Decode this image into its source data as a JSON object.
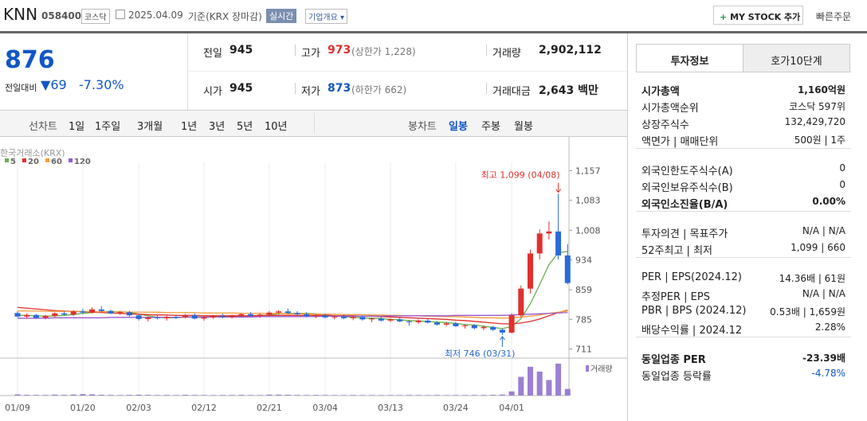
{
  "header": {
    "name": "KNN",
    "code": "058400",
    "market": "코스닥",
    "date": "2025.04.09",
    "basis": "기준(KRX 장마감)",
    "realtime": "실시간",
    "company_info": "기업개요",
    "my_stock": "MY STOCK 추가",
    "quick_order": "빠른주문"
  },
  "quote": {
    "price": "876",
    "change_label": "전일대비",
    "change": "69",
    "change_pct": "-7.30%"
  },
  "stats": {
    "rows": [
      [
        {
          "label": "전일",
          "value": "945"
        },
        {
          "label": "고가",
          "value": "973",
          "note": "(상한가 1,228)"
        },
        {
          "label": "거래량",
          "value": "2,902,112"
        }
      ],
      [
        {
          "label": "시가",
          "value": "945"
        },
        {
          "label": "저가",
          "value": "873",
          "note": "(하한가 662)"
        },
        {
          "label": "거래대금",
          "value": "2,643 백만"
        }
      ]
    ]
  },
  "tabs": {
    "line_chart": "선차트",
    "line_periods": [
      "1일",
      "1주일",
      "3개월",
      "1년",
      "3년",
      "5년",
      "10년"
    ],
    "candle_chart": "봉차트",
    "candle_periods": [
      "일봉",
      "주봉",
      "월봉"
    ]
  },
  "chart_data": {
    "type": "candlestick",
    "source": "한국거래소(KRX)",
    "categories": [
      "01/09",
      null,
      null,
      null,
      null,
      null,
      null,
      "01/20",
      null,
      null,
      null,
      null,
      null,
      "02/03",
      null,
      null,
      null,
      null,
      null,
      null,
      "02/12",
      null,
      null,
      null,
      null,
      null,
      null,
      "02/21",
      null,
      null,
      null,
      null,
      null,
      "03/04",
      null,
      null,
      null,
      null,
      null,
      null,
      "03/13",
      null,
      null,
      null,
      null,
      null,
      null,
      "03/24",
      null,
      null,
      null,
      null,
      null,
      "04/01",
      null,
      null,
      null,
      null,
      null,
      null
    ],
    "open": [
      801,
      792,
      796,
      789,
      794,
      800,
      797,
      805,
      802,
      810,
      806,
      800,
      803,
      795,
      786,
      790,
      788,
      791,
      790,
      795,
      787,
      790,
      793,
      791,
      795,
      798,
      794,
      797,
      802,
      805,
      801,
      798,
      793,
      795,
      790,
      792,
      788,
      791,
      785,
      787,
      782,
      785,
      780,
      778,
      782,
      777,
      772,
      775,
      768,
      770,
      763,
      766,
      759,
      752,
      795,
      862,
      950,
      1000,
      1005,
      945
    ],
    "high": [
      805,
      800,
      799,
      796,
      803,
      805,
      808,
      812,
      815,
      818,
      809,
      806,
      806,
      797,
      792,
      795,
      794,
      796,
      798,
      800,
      793,
      796,
      799,
      797,
      801,
      803,
      800,
      806,
      808,
      812,
      806,
      803,
      798,
      799,
      796,
      797,
      794,
      795,
      790,
      792,
      788,
      789,
      784,
      785,
      786,
      781,
      778,
      779,
      774,
      773,
      770,
      769,
      762,
      800,
      870,
      960,
      1010,
      1030,
      1099,
      973
    ],
    "low": [
      790,
      788,
      786,
      785,
      790,
      795,
      794,
      798,
      800,
      803,
      798,
      796,
      792,
      782,
      780,
      785,
      782,
      786,
      787,
      785,
      782,
      786,
      788,
      787,
      790,
      792,
      789,
      793,
      798,
      799,
      795,
      790,
      788,
      787,
      785,
      786,
      783,
      782,
      778,
      780,
      778,
      778,
      770,
      774,
      775,
      770,
      768,
      766,
      762,
      760,
      758,
      756,
      746,
      750,
      790,
      850,
      935,
      985,
      935,
      873
    ],
    "close": [
      792,
      796,
      789,
      794,
      800,
      797,
      805,
      802,
      810,
      806,
      800,
      803,
      795,
      786,
      790,
      788,
      791,
      789,
      795,
      787,
      790,
      793,
      791,
      795,
      798,
      794,
      797,
      802,
      805,
      801,
      798,
      793,
      795,
      790,
      792,
      788,
      791,
      785,
      787,
      782,
      785,
      780,
      778,
      782,
      777,
      772,
      775,
      768,
      770,
      763,
      766,
      759,
      752,
      795,
      862,
      950,
      1000,
      1005,
      945,
      876
    ],
    "up_color": "#e0302d",
    "down_color": "#2a6ad6",
    "ylim": [
      700,
      1170
    ],
    "yticks": [
      711,
      785,
      859,
      934,
      {
        "value": 1008,
        "label": "1,008"
      },
      {
        "value": 1083,
        "label": "1,083"
      },
      {
        "value": 1157,
        "label": "1,157"
      }
    ],
    "annotations": {
      "high": "최고 1,099 (04/08)",
      "low": "최저 746 (03/31)"
    },
    "series": [
      {
        "name": "5",
        "color": "#6ab04c",
        "values": [
          795,
          795,
          794,
          793,
          794,
          795,
          797,
          800,
          802,
          804,
          805,
          804,
          803,
          798,
          794,
          790,
          789,
          789,
          791,
          790,
          790,
          791,
          792,
          793,
          793,
          794,
          795,
          796,
          799,
          800,
          800,
          800,
          799,
          796,
          794,
          792,
          790,
          789,
          788,
          787,
          785,
          784,
          782,
          781,
          780,
          778,
          777,
          775,
          772,
          771,
          768,
          765,
          762,
          767,
          787,
          824,
          872,
          922,
          952,
          955
        ]
      },
      {
        "name": "20",
        "color": "#e0302d",
        "values": [
          815,
          813,
          811,
          809,
          807,
          806,
          805,
          804,
          803,
          802,
          801,
          800,
          799,
          798,
          797,
          796,
          796,
          795,
          795,
          795,
          794,
          794,
          794,
          794,
          794,
          794,
          794,
          795,
          795,
          795,
          795,
          795,
          795,
          795,
          794,
          794,
          794,
          793,
          793,
          792,
          791,
          790,
          789,
          788,
          787,
          786,
          785,
          783,
          782,
          780,
          778,
          776,
          774,
          774,
          776,
          780,
          786,
          794,
          802,
          808
        ]
      },
      {
        "name": "60",
        "color": "#f39c3a",
        "values": [
          806,
          806,
          806,
          805,
          805,
          805,
          805,
          805,
          804,
          804,
          804,
          804,
          803,
          803,
          803,
          803,
          802,
          802,
          802,
          802,
          801,
          801,
          801,
          801,
          800,
          800,
          800,
          800,
          800,
          799,
          799,
          799,
          798,
          798,
          798,
          797,
          797,
          797,
          796,
          796,
          795,
          795,
          794,
          794,
          793,
          793,
          792,
          792,
          791,
          790,
          789,
          789,
          788,
          789,
          791,
          793,
          796,
          800,
          803,
          806
        ]
      },
      {
        "name": "120",
        "color": "#9b59d0",
        "values": [
          788,
          788,
          788,
          788,
          789,
          789,
          789,
          789,
          789,
          789,
          790,
          790,
          790,
          790,
          790,
          790,
          790,
          790,
          791,
          791,
          791,
          791,
          791,
          791,
          791,
          791,
          792,
          792,
          792,
          792,
          792,
          792,
          792,
          793,
          793,
          793,
          793,
          793,
          793,
          793,
          794,
          794,
          794,
          794,
          794,
          794,
          794,
          795,
          795,
          795,
          795,
          795,
          795,
          796,
          797,
          798,
          799,
          800,
          801,
          802
        ]
      }
    ],
    "volume": {
      "name": "거래량",
      "color": "#9b7fd4",
      "ylim": [
        0,
        15000000
      ],
      "values": [
        520000,
        310000,
        280000,
        260000,
        410000,
        300000,
        450000,
        620000,
        540000,
        330000,
        280000,
        240000,
        300000,
        360000,
        290000,
        250000,
        270000,
        230000,
        310000,
        260000,
        240000,
        220000,
        250000,
        260000,
        300000,
        240000,
        230000,
        410000,
        380000,
        350000,
        270000,
        250000,
        260000,
        240000,
        230000,
        220000,
        250000,
        210000,
        230000,
        220000,
        240000,
        210000,
        260000,
        230000,
        220000,
        250000,
        210000,
        240000,
        230000,
        260000,
        250000,
        300000,
        420000,
        1800000,
        8200000,
        12600000,
        10500000,
        6800000,
        14000000,
        2902112
      ]
    }
  },
  "side": {
    "tabs": [
      "투자정보",
      "호가10단계"
    ],
    "sections": [
      [
        {
          "label": "시가총액",
          "value": "1,160억원"
        },
        {
          "label": "시가총액순위",
          "value": "코스닥 597위"
        },
        {
          "label": "상장주식수",
          "value": "132,429,720"
        },
        {
          "label": "액면가 | 매매단위",
          "value": "500원 | 1주"
        }
      ],
      [
        {
          "label": "외국인한도주식수(A)",
          "value": "0"
        },
        {
          "label": "외국인보유주식수(B)",
          "value": "0"
        },
        {
          "label": "외국인소진율(B/A)",
          "value": "0.00%"
        }
      ],
      [
        {
          "label": "투자의견 | 목표주가",
          "value": "N/A | N/A"
        },
        {
          "label": "52주최고 | 최저",
          "value": "1,099 | 660"
        }
      ],
      [
        {
          "label": "PER | EPS(2024.12)",
          "value": "14.36배 | 61원"
        },
        {
          "label": "추정PER | EPS",
          "value": "N/A | N/A"
        },
        {
          "label": "PBR | BPS (2024.12)",
          "value": "0.53배 | 1,659원"
        },
        {
          "label": "배당수익률 | 2024.12",
          "value": "2.28%"
        }
      ],
      [
        {
          "label": "동일업종 PER",
          "value": "-23.39배"
        },
        {
          "label": "동일업종 등락률",
          "value": "-4.78%"
        }
      ]
    ]
  }
}
